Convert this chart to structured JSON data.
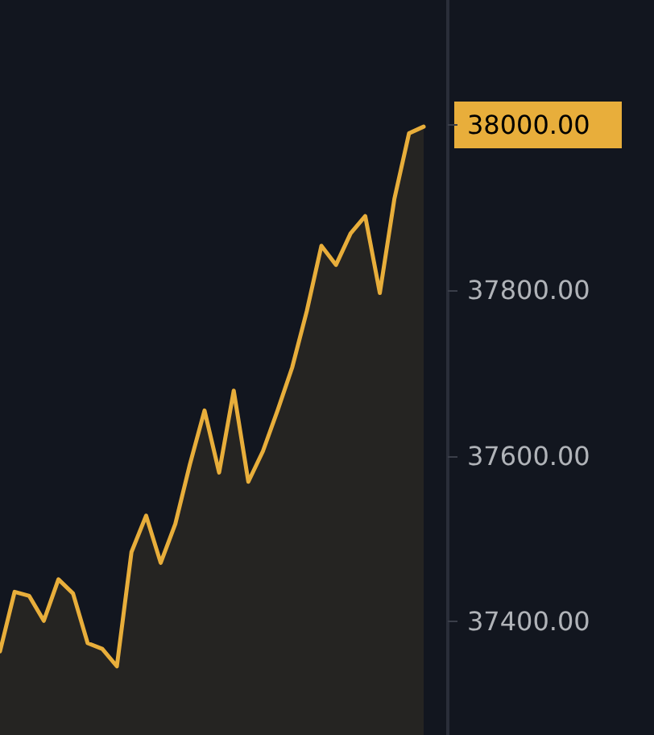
{
  "chart_data": {
    "type": "area",
    "categories": [
      null,
      null,
      null,
      null,
      null,
      null,
      null,
      null,
      null,
      null,
      null,
      null,
      null,
      null,
      null,
      null,
      null,
      null,
      null,
      null,
      null,
      null,
      null,
      null,
      null,
      null,
      null,
      null,
      null,
      null
    ],
    "series": [
      {
        "color": "#e8ae3b",
        "values": [
          37364,
          37436,
          37431,
          37401,
          37451,
          37434,
          37374,
          37367,
          37346,
          37484,
          37528,
          37471,
          37518,
          37590,
          37655,
          37580,
          37679,
          37569,
          37606,
          37655,
          37707,
          37775,
          37854,
          37831,
          37869,
          37890,
          37797,
          37911,
          37990,
          37998
        ]
      }
    ],
    "ylim": [
      37263,
      38151
    ],
    "yticks": [
      {
        "value": 37400,
        "label": "37400.00"
      },
      {
        "value": 37600,
        "label": "37600.00"
      },
      {
        "value": 37800,
        "label": "37800.00"
      },
      {
        "value": 38000,
        "label": "38000.00"
      }
    ],
    "tick_labels": "y",
    "grid": false,
    "line_style": "solid"
  }
}
